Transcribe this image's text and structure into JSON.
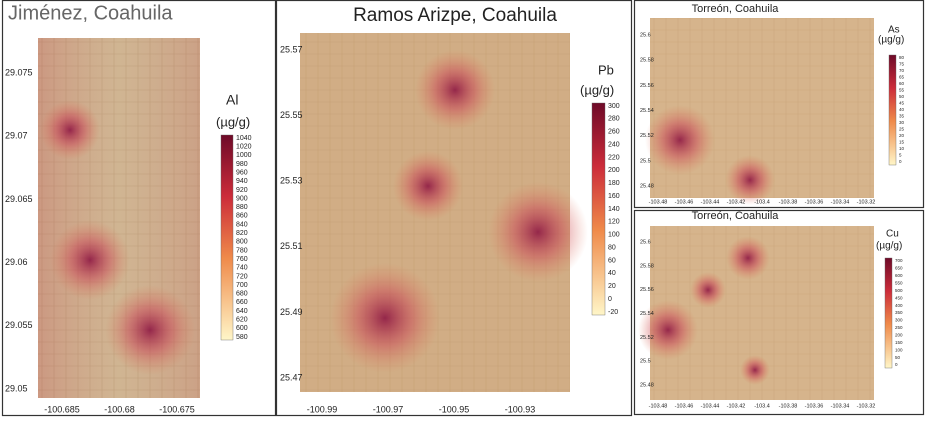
{
  "panels": [
    {
      "title": "Jiménez, Coahuila",
      "element": "Al",
      "unit": "(µg/g)",
      "colorbar_ticks": [
        1040,
        1020,
        1000,
        980,
        960,
        940,
        920,
        900,
        880,
        860,
        840,
        820,
        800,
        780,
        760,
        740,
        720,
        700,
        680,
        660,
        640,
        620,
        600,
        580
      ],
      "y_ticks": [
        29.075,
        29.07,
        29.065,
        29.06,
        29.055,
        29.05
      ],
      "x_ticks": [
        -100.685,
        -100.68,
        -100.675
      ]
    },
    {
      "title": "Ramos Arizpe, Coahuila",
      "element": "Pb",
      "unit": "(µg/g)",
      "colorbar_ticks": [
        300,
        280,
        260,
        240,
        220,
        200,
        180,
        160,
        140,
        120,
        100,
        80,
        60,
        40,
        20,
        0,
        -20
      ],
      "y_ticks": [
        25.57,
        25.55,
        25.53,
        25.51,
        25.49,
        25.47
      ],
      "x_ticks": [
        -100.99,
        -100.97,
        -100.95,
        -100.93
      ]
    },
    {
      "title": "Torreón, Coahuila",
      "element": "As",
      "unit": "(µg/g)",
      "colorbar_ticks": [
        80,
        75,
        70,
        65,
        60,
        55,
        50,
        45,
        40,
        35,
        30,
        25,
        20,
        15,
        10,
        5,
        0
      ],
      "y_ticks": [
        25.6,
        25.58,
        25.56,
        25.54,
        25.52,
        25.5,
        25.48
      ],
      "x_ticks": [
        -103.48,
        -103.46,
        -103.44,
        -103.42,
        -103.4,
        -103.38,
        -103.36,
        -103.34,
        -103.32
      ]
    },
    {
      "title": "Torreón, Coahuila",
      "element": "Cu",
      "unit": "(µg/g)",
      "colorbar_ticks": [
        700,
        650,
        600,
        550,
        500,
        450,
        400,
        350,
        300,
        250,
        200,
        150,
        100,
        50,
        0
      ],
      "y_ticks": [
        25.6,
        25.58,
        25.56,
        25.54,
        25.52,
        25.5,
        25.48
      ],
      "x_ticks": [
        -103.48,
        -103.46,
        -103.44,
        -103.42,
        -103.4,
        -103.38,
        -103.36,
        -103.34,
        -103.32
      ]
    }
  ]
}
